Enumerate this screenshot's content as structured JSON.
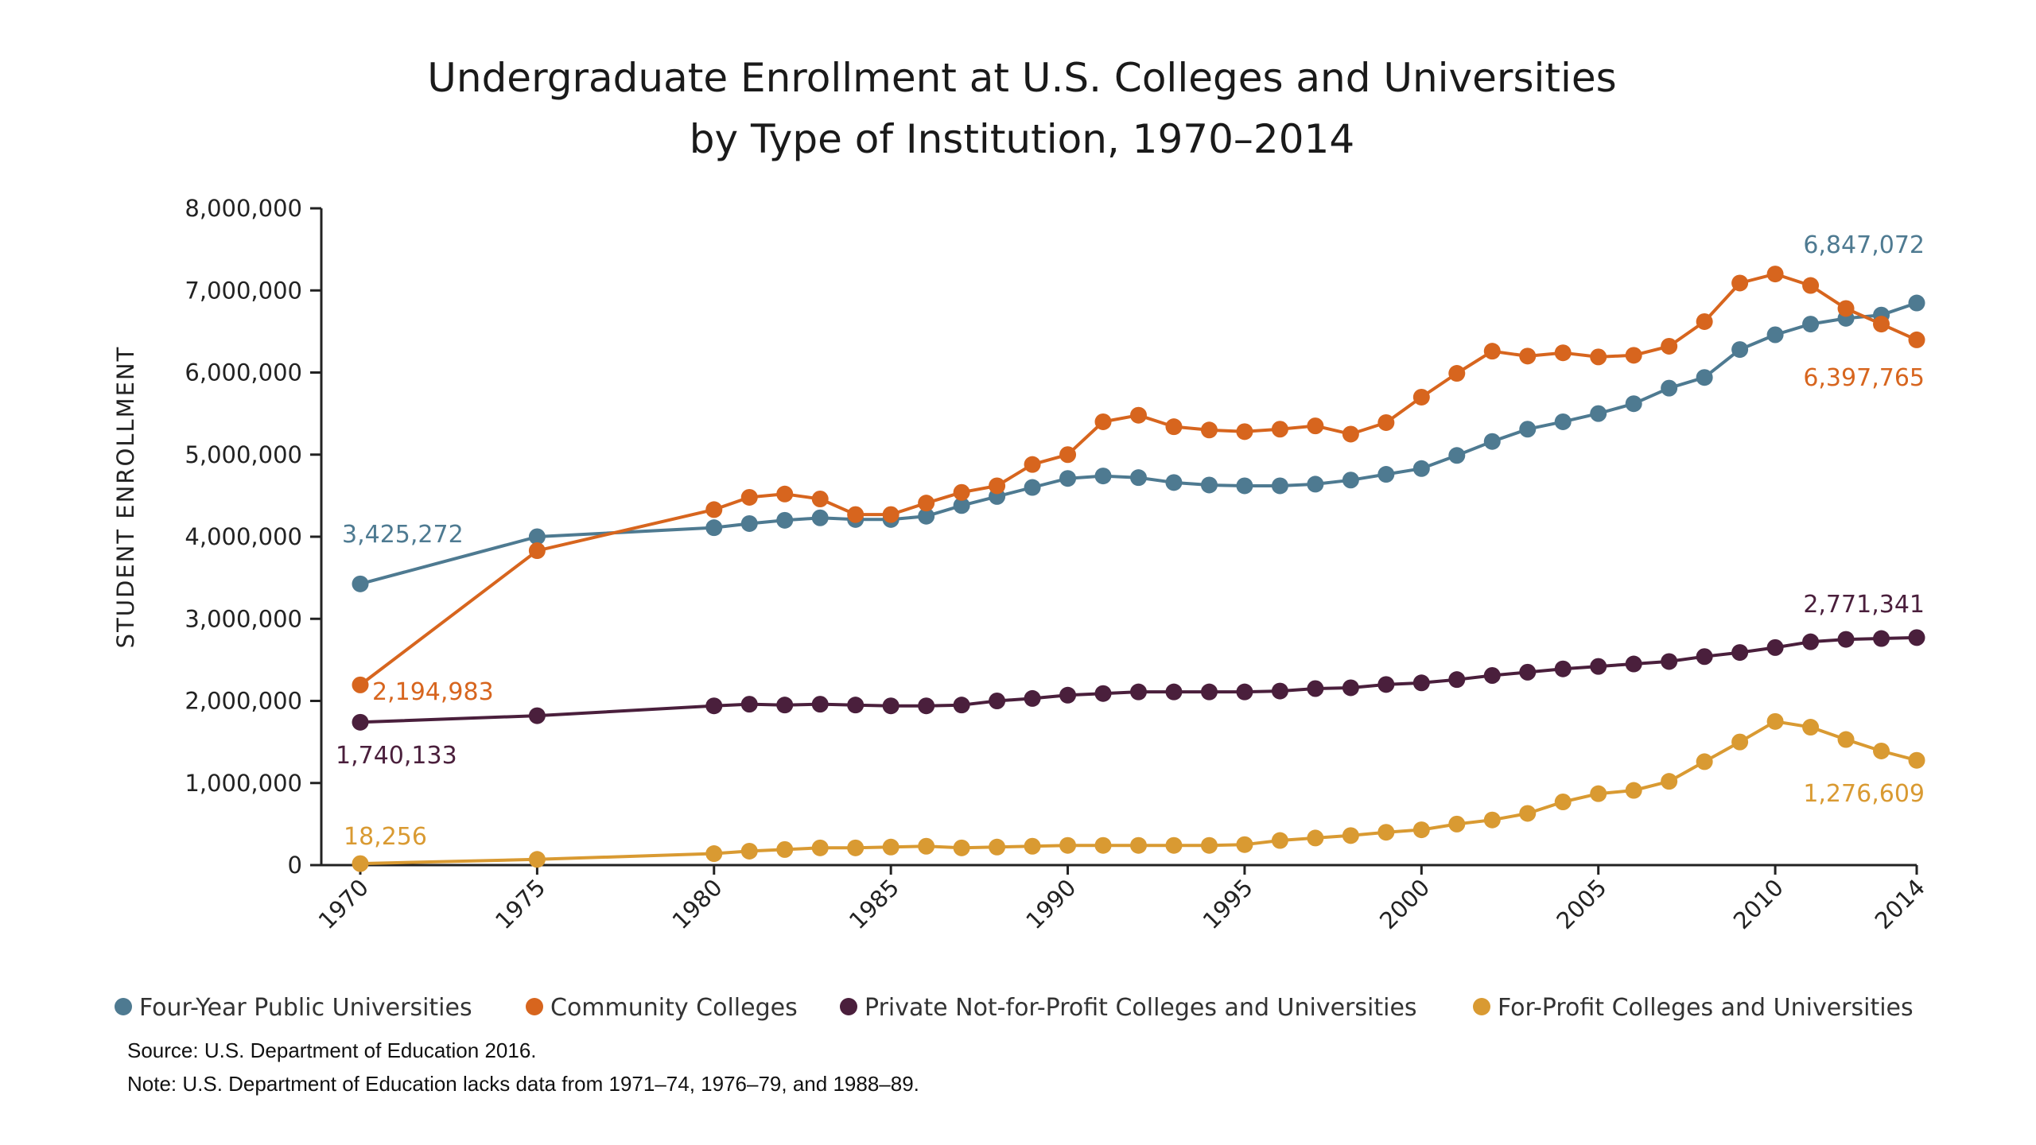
{
  "chart_data": {
    "type": "line",
    "title": [
      "Undergraduate Enrollment at U.S. Colleges and Universities",
      "by Type of Institution, 1970–2014"
    ],
    "ylabel": "STUDENT  ENROLLMENT",
    "xlabel": "",
    "x_ticks": [
      "1970",
      "1975",
      "1980",
      "1985",
      "1990",
      "1995",
      "2000",
      "2005",
      "2010",
      "2014"
    ],
    "y_ticks": [
      "0",
      "1,000,000",
      "2,000,000",
      "3,000,000",
      "4,000,000",
      "5,000,000",
      "6,000,000",
      "7,000,000",
      "8,000,000"
    ],
    "xlim": [
      1970,
      2014
    ],
    "ylim": [
      0,
      8000000
    ],
    "grid": false,
    "legend_position": "bottom",
    "years": [
      1970,
      1975,
      1980,
      1981,
      1982,
      1983,
      1984,
      1985,
      1986,
      1987,
      1988,
      1989,
      1990,
      1991,
      1992,
      1993,
      1994,
      1995,
      1996,
      1997,
      1998,
      1999,
      2000,
      2001,
      2002,
      2003,
      2004,
      2005,
      2006,
      2007,
      2008,
      2009,
      2010,
      2011,
      2012,
      2013,
      2014
    ],
    "series": [
      {
        "name": "Four-Year Public Universities",
        "color": "#4e7a91",
        "start_label": "3,425,272",
        "end_label": "6,847,072",
        "values": [
          3425272,
          4000000,
          4110000,
          4160000,
          4200000,
          4230000,
          4210000,
          4210000,
          4250000,
          4380000,
          4490000,
          4600000,
          4710000,
          4740000,
          4720000,
          4660000,
          4630000,
          4620000,
          4620000,
          4640000,
          4690000,
          4760000,
          4830000,
          4990000,
          5160000,
          5310000,
          5400000,
          5500000,
          5620000,
          5810000,
          5940000,
          6280000,
          6460000,
          6590000,
          6660000,
          6700000,
          6847072
        ]
      },
      {
        "name": "Community Colleges",
        "color": "#d7651e",
        "start_label": "2,194,983",
        "end_label": "6,397,765",
        "values": [
          2194983,
          3830000,
          4330000,
          4480000,
          4520000,
          4460000,
          4270000,
          4270000,
          4410000,
          4540000,
          4620000,
          4880000,
          5000000,
          5400000,
          5480000,
          5340000,
          5300000,
          5280000,
          5310000,
          5350000,
          5250000,
          5390000,
          5700000,
          5990000,
          6260000,
          6200000,
          6240000,
          6190000,
          6210000,
          6320000,
          6620000,
          7090000,
          7200000,
          7060000,
          6780000,
          6590000,
          6397765
        ]
      },
      {
        "name": "Private Not-for-Profit Colleges and Universities",
        "color": "#4a1f3c",
        "start_label": "1,740,133",
        "end_label": "2,771,341",
        "values": [
          1740133,
          1820000,
          1940000,
          1960000,
          1950000,
          1960000,
          1950000,
          1940000,
          1940000,
          1950000,
          2000000,
          2030000,
          2070000,
          2090000,
          2110000,
          2110000,
          2110000,
          2110000,
          2120000,
          2150000,
          2160000,
          2200000,
          2220000,
          2260000,
          2310000,
          2350000,
          2390000,
          2420000,
          2450000,
          2480000,
          2540000,
          2590000,
          2650000,
          2720000,
          2750000,
          2760000,
          2771341
        ]
      },
      {
        "name": "For-Profit Colleges and Universities",
        "color": "#d99a32",
        "start_label": "18,256",
        "end_label": "1,276,609",
        "values": [
          18256,
          70000,
          140000,
          170000,
          190000,
          210000,
          210000,
          220000,
          230000,
          210000,
          220000,
          230000,
          240000,
          240000,
          240000,
          240000,
          240000,
          250000,
          300000,
          330000,
          360000,
          400000,
          430000,
          500000,
          550000,
          630000,
          770000,
          870000,
          910000,
          1020000,
          1260000,
          1500000,
          1750000,
          1680000,
          1530000,
          1390000,
          1276609
        ]
      }
    ]
  },
  "notes": {
    "source": "Source: U.S. Department of Education 2016.",
    "note": "Note: U.S. Department of Education lacks data from 1971–74, 1976–79, and 1988–89."
  }
}
